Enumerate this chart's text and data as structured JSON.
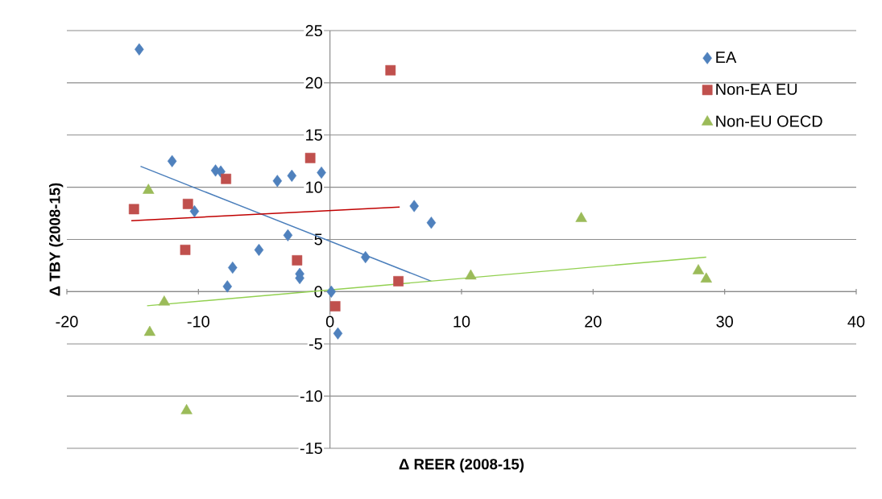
{
  "chart_data": {
    "type": "scatter",
    "xlabel": "Δ REER (2008-15)",
    "ylabel": "Δ TBY (2008-15)",
    "xlim": [
      -20,
      40
    ],
    "xticks": [
      -20,
      -10,
      0,
      10,
      20,
      30,
      40
    ],
    "ylim": [
      -15,
      25
    ],
    "yticks": [
      -15,
      -10,
      -5,
      0,
      5,
      10,
      15,
      20,
      25
    ],
    "grid": "y",
    "legend": "top right",
    "series": [
      {
        "name": "EA",
        "color": "#4f81bd",
        "marker": "diamond",
        "x": [
          -14.5,
          -12.0,
          -8.7,
          -8.3,
          -10.3,
          -4.0,
          -2.9,
          -0.65,
          -3.2,
          -5.4,
          -7.4,
          -7.8,
          -2.3,
          -2.3,
          0.1,
          0.6,
          2.7,
          6.4,
          7.7
        ],
        "values": [
          23.2,
          12.5,
          11.6,
          11.5,
          7.7,
          10.6,
          11.1,
          11.4,
          5.4,
          4.0,
          2.3,
          0.5,
          1.7,
          1.3,
          0.0,
          -4.0,
          3.3,
          8.2,
          6.6
        ]
      },
      {
        "name": "Non-EA EU",
        "color": "#c0504d",
        "marker": "square",
        "x": [
          -14.9,
          -10.8,
          -11.0,
          -7.9,
          -1.5,
          -2.5,
          4.6,
          5.2,
          0.4
        ],
        "values": [
          7.9,
          8.4,
          4.0,
          10.8,
          12.8,
          3.0,
          21.2,
          1.0,
          -1.4
        ]
      },
      {
        "name": "Non-EU OECD",
        "color": "#9bbb59",
        "marker": "triangle",
        "x": [
          -13.8,
          -13.7,
          -12.6,
          -10.9,
          10.7,
          19.1,
          28.0,
          28.6
        ],
        "values": [
          9.7,
          -3.9,
          -1.0,
          -11.4,
          1.5,
          7.0,
          2.0,
          1.2
        ]
      },
      {
        "type": "line",
        "color": "#4a7ebb",
        "marker": "none",
        "x": [
          -14.4,
          7.7
        ],
        "values": [
          12.0,
          1.0
        ]
      },
      {
        "type": "line",
        "color": "#c00000",
        "marker": "none",
        "x": [
          -15.1,
          5.3
        ],
        "values": [
          6.8,
          8.1
        ]
      },
      {
        "type": "line",
        "color": "#92d050",
        "marker": "none",
        "x": [
          -13.9,
          28.6
        ],
        "values": [
          -1.35,
          3.3
        ]
      }
    ]
  }
}
